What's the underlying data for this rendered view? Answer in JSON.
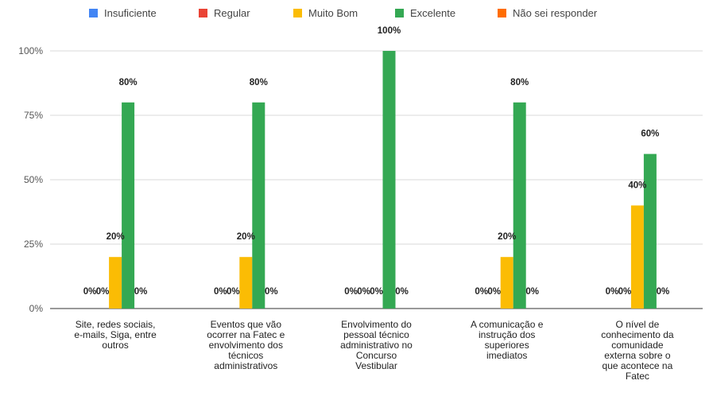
{
  "chart_data": {
    "type": "bar",
    "title": "",
    "xlabel": "",
    "ylabel": "",
    "ylim": [
      0,
      1
    ],
    "yticks": [
      "0%",
      "25%",
      "50%",
      "75%",
      "100%"
    ],
    "grid": true,
    "legend_position": "top",
    "categories": [
      [
        "Site, redes sociais,",
        "e-mails, Siga, entre",
        "outros"
      ],
      [
        "Eventos que vão",
        "ocorrer na Fatec e",
        "envolvimento dos",
        "técnicos",
        "administrativos"
      ],
      [
        "Envolvimento do",
        "pessoal técnico",
        "administrativo no",
        "Concurso",
        "Vestibular"
      ],
      [
        "A comunicação e",
        "instrução dos",
        "superiores",
        "imediatos"
      ],
      [
        "O nível de",
        "conhecimento da",
        "comunidade",
        "externa sobre o",
        "que acontece na",
        "Fatec"
      ]
    ],
    "series": [
      {
        "name": "Insuficiente",
        "color": "#4285f4",
        "values": [
          0,
          0,
          0,
          0,
          0
        ],
        "labels": [
          "0%",
          "0%",
          "0%",
          "0%",
          "0%"
        ]
      },
      {
        "name": "Regular",
        "color": "#ea4335",
        "values": [
          0,
          0,
          0,
          0,
          0
        ],
        "labels": [
          "0%",
          "0%",
          "0%",
          "0%",
          "0%"
        ]
      },
      {
        "name": "Muito Bom",
        "color": "#fbbc04",
        "values": [
          0.2,
          0.2,
          0,
          0.2,
          0.4
        ],
        "labels": [
          "20%",
          "20%",
          "0%",
          "20%",
          "40%"
        ]
      },
      {
        "name": "Excelente",
        "color": "#34a853",
        "values": [
          0.8,
          0.8,
          1.0,
          0.8,
          0.6
        ],
        "labels": [
          "80%",
          "80%",
          "100%",
          "80%",
          "60%"
        ]
      },
      {
        "name": "Não sei responder",
        "color": "#ff6d01",
        "values": [
          0,
          0,
          0,
          0,
          0
        ],
        "labels": [
          "0%",
          "0%",
          "0%",
          "0%",
          "0%"
        ]
      }
    ]
  }
}
